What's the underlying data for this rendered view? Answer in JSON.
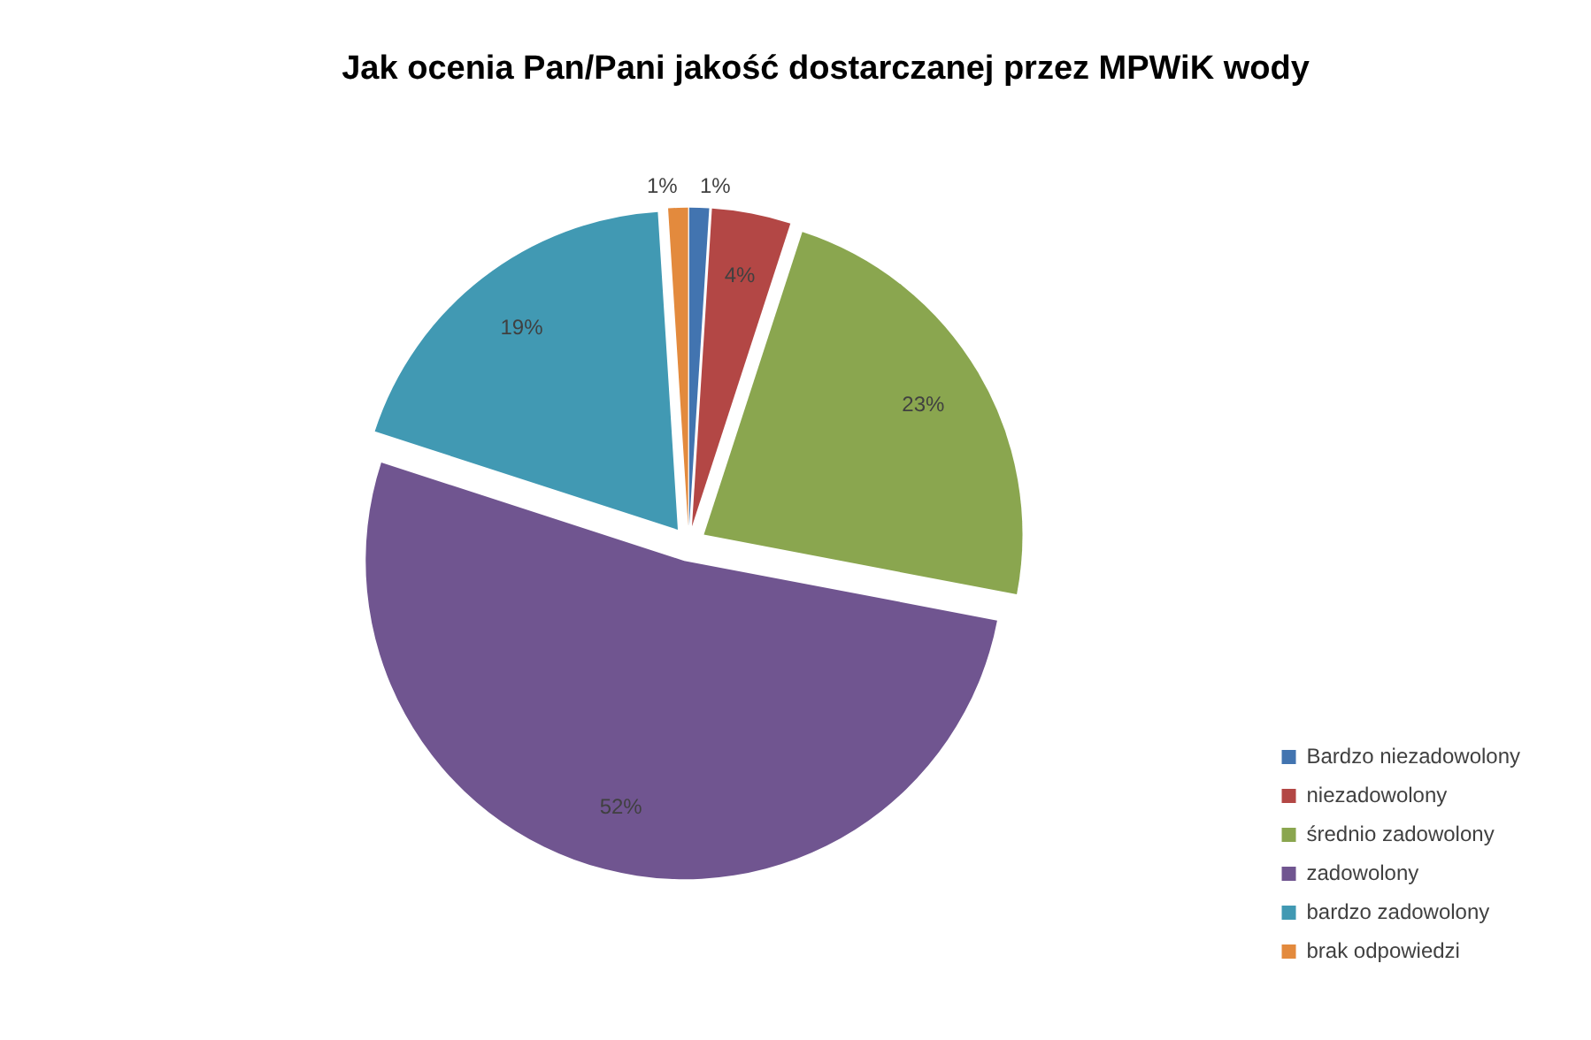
{
  "chart_data": {
    "type": "pie",
    "title": "Jak ocenia Pan/Pani jakość dostarczanej przez MPWiK wody",
    "categories": [
      "Bardzo niezadowolony",
      "niezadowolony",
      "średnio zadowolony",
      "zadowolony",
      "bardzo zadowolony",
      "brak odpowiedzi"
    ],
    "values": [
      1,
      4,
      23,
      52,
      19,
      1
    ],
    "colors": [
      "#4274b0",
      "#b34745",
      "#8aa64f",
      "#705590",
      "#4199b3",
      "#e38a3d"
    ],
    "value_labels": [
      "1%",
      "4%",
      "23%",
      "52%",
      "19%",
      "1%"
    ],
    "legend": "bottom right"
  }
}
